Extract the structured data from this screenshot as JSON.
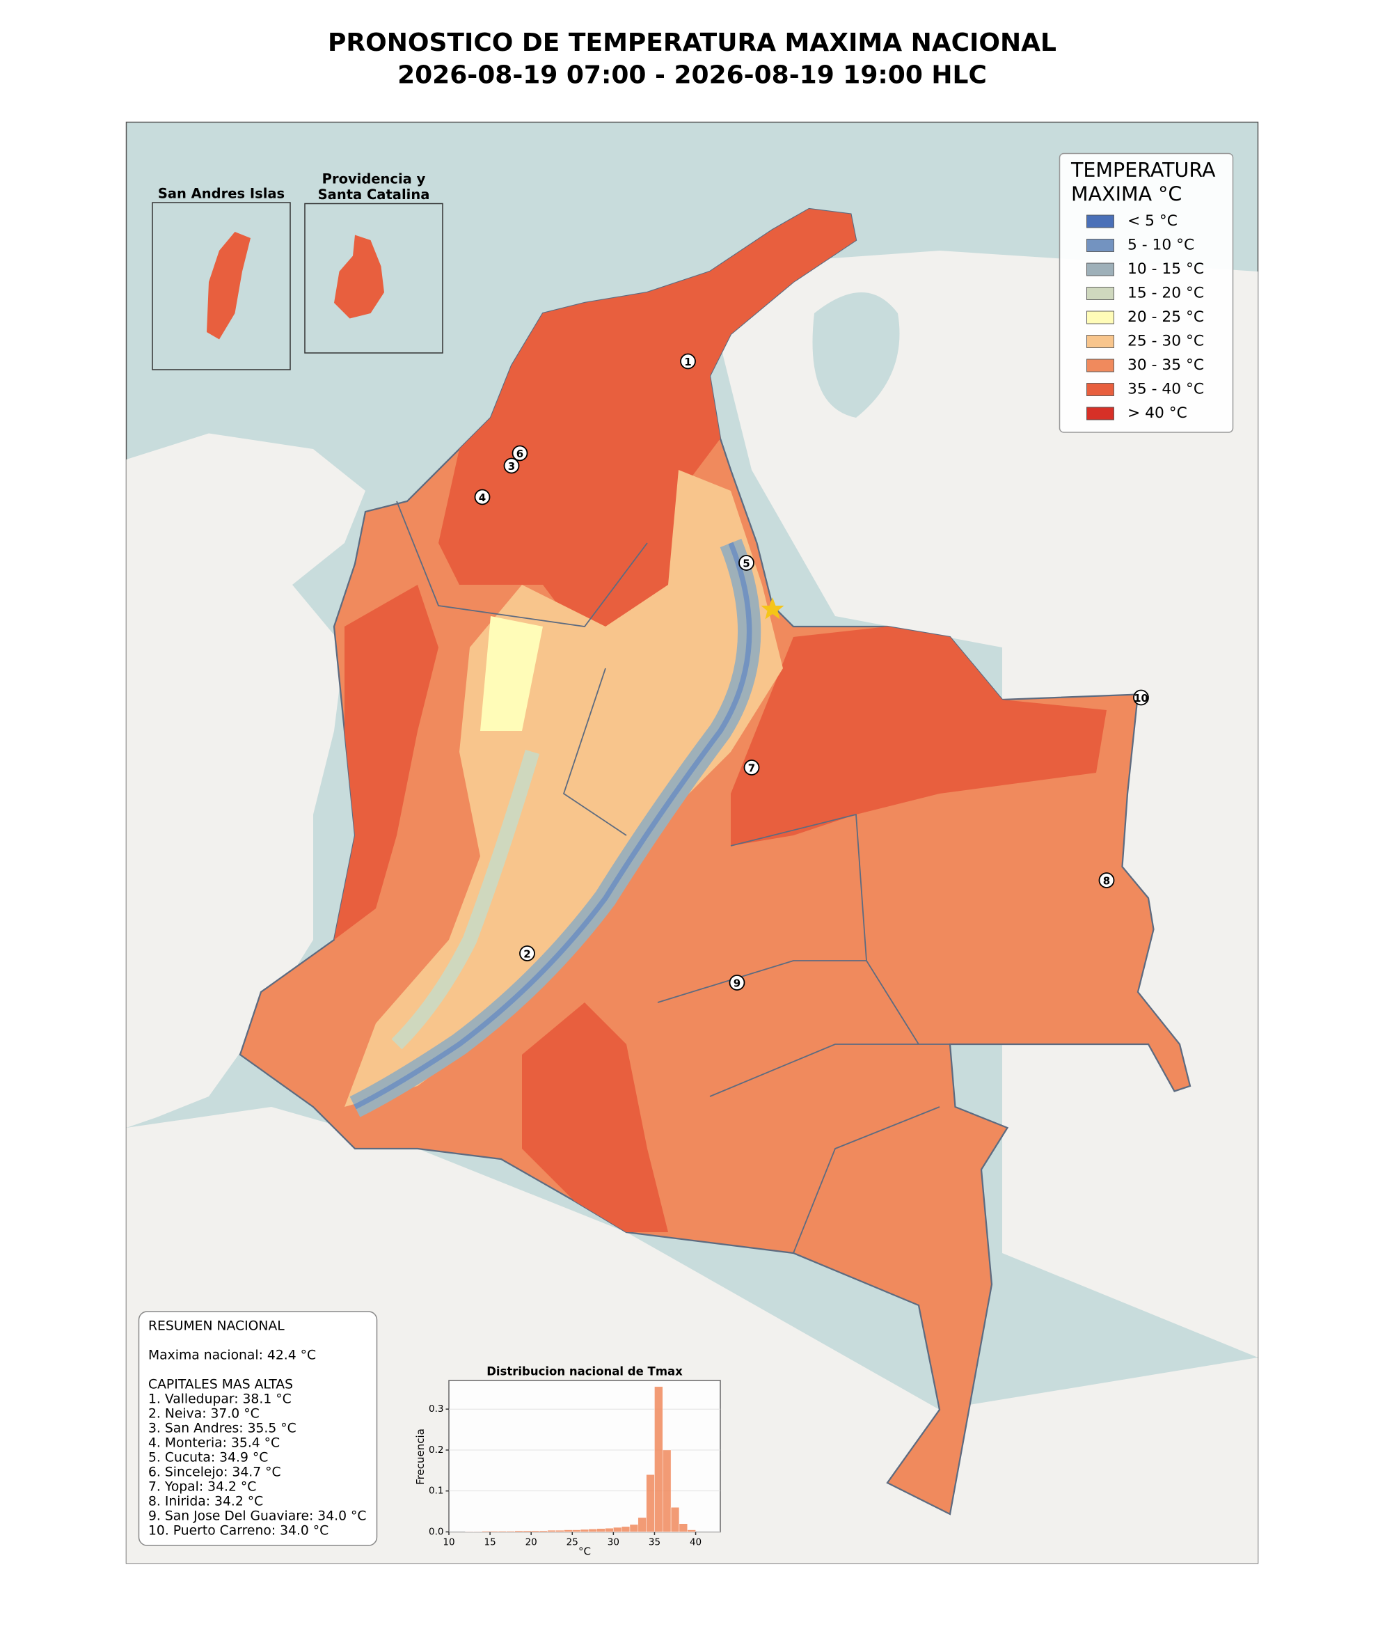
{
  "title": [
    "PRONOSTICO DE TEMPERATURA MAXIMA NACIONAL",
    "2026-08-19 07:00 - 2026-08-19 19:00 HLC"
  ],
  "insets": [
    {
      "title": [
        "San Andres Islas"
      ]
    },
    {
      "title": [
        "Providencia y",
        "Santa Catalina"
      ]
    }
  ],
  "legend": {
    "title": [
      "TEMPERATURA",
      "MAXIMA °C"
    ],
    "items": [
      {
        "label": "< 5 °C",
        "color": "#4a70b8"
      },
      {
        "label": "5 - 10 °C",
        "color": "#7393c0"
      },
      {
        "label": "10 - 15 °C",
        "color": "#9eb0b9"
      },
      {
        "label": "15 - 20 °C",
        "color": "#cfd8be"
      },
      {
        "label": "20 - 25 °C",
        "color": "#fffcb8"
      },
      {
        "label": "25 - 30 °C",
        "color": "#f8c58c"
      },
      {
        "label": "30 - 35 °C",
        "color": "#f08a5d"
      },
      {
        "label": "35 - 40 °C",
        "color": "#e85f3e"
      },
      {
        "label": "> 40 °C",
        "color": "#d73027"
      }
    ]
  },
  "markers": [
    "1",
    "2",
    "3",
    "4",
    "5",
    "6",
    "7",
    "8",
    "9",
    "10"
  ],
  "summary": {
    "heading": "RESUMEN NACIONAL",
    "maximum": "Maxima nacional: 42.4 °C",
    "capitals_heading": "CAPITALES MAS ALTAS",
    "capitals": [
      "1. Valledupar: 38.1 °C",
      "2. Neiva: 37.0 °C",
      "3. San Andres: 35.5 °C",
      "4. Monteria: 35.4 °C",
      "5. Cucuta: 34.9 °C",
      "6. Sincelejo: 34.7 °C",
      "7. Yopal: 34.2 °C",
      "8. Inirida: 34.2 °C",
      "9. San Jose Del Guaviare: 34.0 °C",
      "10. Puerto Carreno: 34.0 °C"
    ]
  },
  "chart_data": {
    "type": "histogram",
    "title": "Distribucion nacional de Tmax",
    "xlabel": "°C",
    "ylabel": "Frecuencia",
    "color": "#f08a5d",
    "bins": [
      12,
      13,
      14,
      15,
      16,
      17,
      18,
      19,
      20,
      21,
      22,
      23,
      24,
      25,
      26,
      27,
      28,
      29,
      30,
      31,
      32,
      33,
      34,
      35,
      36,
      37,
      38,
      39,
      40
    ],
    "values": [
      0.001,
      0.001,
      0.002,
      0.002,
      0.002,
      0.002,
      0.003,
      0.003,
      0.003,
      0.003,
      0.004,
      0.004,
      0.005,
      0.005,
      0.006,
      0.007,
      0.008,
      0.009,
      0.011,
      0.013,
      0.018,
      0.035,
      0.14,
      0.355,
      0.2,
      0.06,
      0.02,
      0.005
    ],
    "xlim": [
      10,
      43
    ],
    "xticks": [
      10,
      15,
      20,
      25,
      30,
      35,
      40
    ],
    "ylim": [
      0,
      0.37
    ],
    "yticks": [
      {
        "value": 0,
        "label": "0.0"
      },
      0.1,
      0.2,
      0.3
    ],
    "grid": true
  }
}
